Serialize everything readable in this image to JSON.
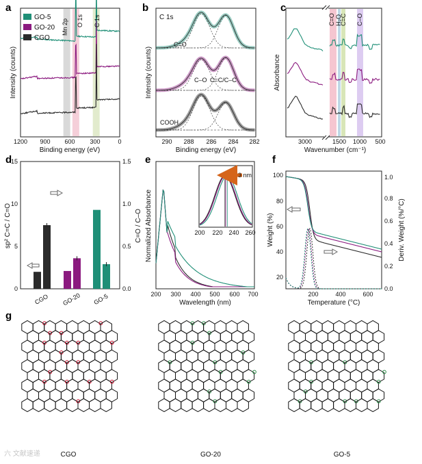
{
  "colors": {
    "cgo": "#2b2b2b",
    "go20": "#8b1a7f",
    "go5": "#1f8f77",
    "red": "#c8102e",
    "green": "#2b8a47",
    "orange": "#d5651b"
  },
  "chart_data": [
    {
      "panel": "a",
      "type": "line",
      "xlabel": "Binding energy (eV)",
      "ylabel": "Intensity (counts)",
      "xlim": [
        1200,
        0
      ],
      "xticks": [
        "1200",
        "900",
        "600",
        "300",
        "0"
      ],
      "legend": [
        "GO-5",
        "GO-20",
        "CGO"
      ],
      "legend_placement": "top-left",
      "peak_labels": [
        "Mn 2p",
        "O 1s",
        "C 1s"
      ],
      "series": [
        {
          "name": "GO-5",
          "baseline": 0.85,
          "peaks": [
            [
              531,
              0.35
            ],
            [
              284,
              0.5
            ]
          ]
        },
        {
          "name": "GO-20",
          "baseline": 0.5,
          "peaks": [
            [
              531,
              0.28
            ],
            [
              284,
              0.45
            ]
          ]
        },
        {
          "name": "CGO",
          "baseline": 0.2,
          "peaks": [
            [
              531,
              0.3
            ],
            [
              284,
              0.55
            ]
          ]
        }
      ]
    },
    {
      "panel": "b",
      "type": "line",
      "title": "C 1s",
      "xlabel": "Binding energy (eV)",
      "ylabel": "Intensity (counts)",
      "xlim": [
        291,
        282
      ],
      "xticks": [
        "290",
        "288",
        "286",
        "284",
        "282"
      ],
      "annotations": [
        "C=O",
        "C–O",
        "C=C/C–C",
        "COOH"
      ],
      "series": [
        {
          "name": "GO-5",
          "peaks": [
            [
              286.9,
              1.0
            ],
            [
              284.7,
              0.95
            ]
          ]
        },
        {
          "name": "GO-20",
          "peaks": [
            [
              286.9,
              0.9
            ],
            [
              284.7,
              0.95
            ]
          ]
        },
        {
          "name": "CGO",
          "peaks": [
            [
              286.9,
              1.0
            ],
            [
              284.7,
              0.8
            ]
          ]
        }
      ]
    },
    {
      "panel": "c",
      "type": "line",
      "xlabel": "Wavenumber (cm⁻¹)",
      "ylabel": "Absorbance",
      "xticks": [
        "3000",
        "1500",
        "1000",
        "500"
      ],
      "bands": [
        "C=O",
        "H₂O",
        "C=C",
        "C–O"
      ]
    },
    {
      "panel": "d",
      "type": "bar",
      "categories": [
        "CGO",
        "GO-20",
        "GO-5"
      ],
      "ylabel": "sp² C=C / C=O",
      "y2label": "C=O / C–O",
      "ylim": [
        0,
        15
      ],
      "y2lim": [
        0,
        1.5
      ],
      "yticks": [
        "0",
        "5",
        "10",
        "15"
      ],
      "y2ticks": [
        "0.0",
        "0.5",
        "1.0",
        "1.5"
      ],
      "series": [
        {
          "axis": "left",
          "values": [
            2.0,
            2.1,
            9.3
          ]
        },
        {
          "axis": "right",
          "values": [
            0.75,
            0.36,
            0.29
          ]
        }
      ]
    },
    {
      "panel": "e",
      "type": "line",
      "xlabel": "Wavelength (nm)",
      "ylabel": "Normalized Absorbance",
      "xlim": [
        200,
        700
      ],
      "xticks": [
        "200",
        "300",
        "400",
        "500",
        "600",
        "700"
      ],
      "inset_xticks": [
        "200",
        "220",
        "240",
        "260"
      ],
      "inset_annotation": "3 nm",
      "series": [
        {
          "name": "CGO",
          "peak_nm": 232
        },
        {
          "name": "GO-20",
          "peak_nm": 233
        },
        {
          "name": "GO-5",
          "peak_nm": 235
        }
      ]
    },
    {
      "panel": "f",
      "type": "line",
      "xlabel": "Temperature (°C)",
      "ylabel": "Weight (%)",
      "y2label": "Deriv. Weight (%/°C)",
      "xlim": [
        0,
        700
      ],
      "xticks": [
        "200",
        "400",
        "600"
      ],
      "ylim": [
        20,
        100
      ],
      "yticks": [
        "20",
        "40",
        "60",
        "80",
        "100"
      ],
      "y2ticks": [
        "0.0",
        "0.2",
        "0.4",
        "0.6",
        "0.8",
        "1.0"
      ]
    }
  ],
  "panel_g": {
    "labels": [
      "CGO",
      "GO-20",
      "GO-5"
    ]
  },
  "panel_letters": [
    "a",
    "b",
    "c",
    "d",
    "e",
    "f",
    "g"
  ],
  "watermark": "六 文献速递"
}
